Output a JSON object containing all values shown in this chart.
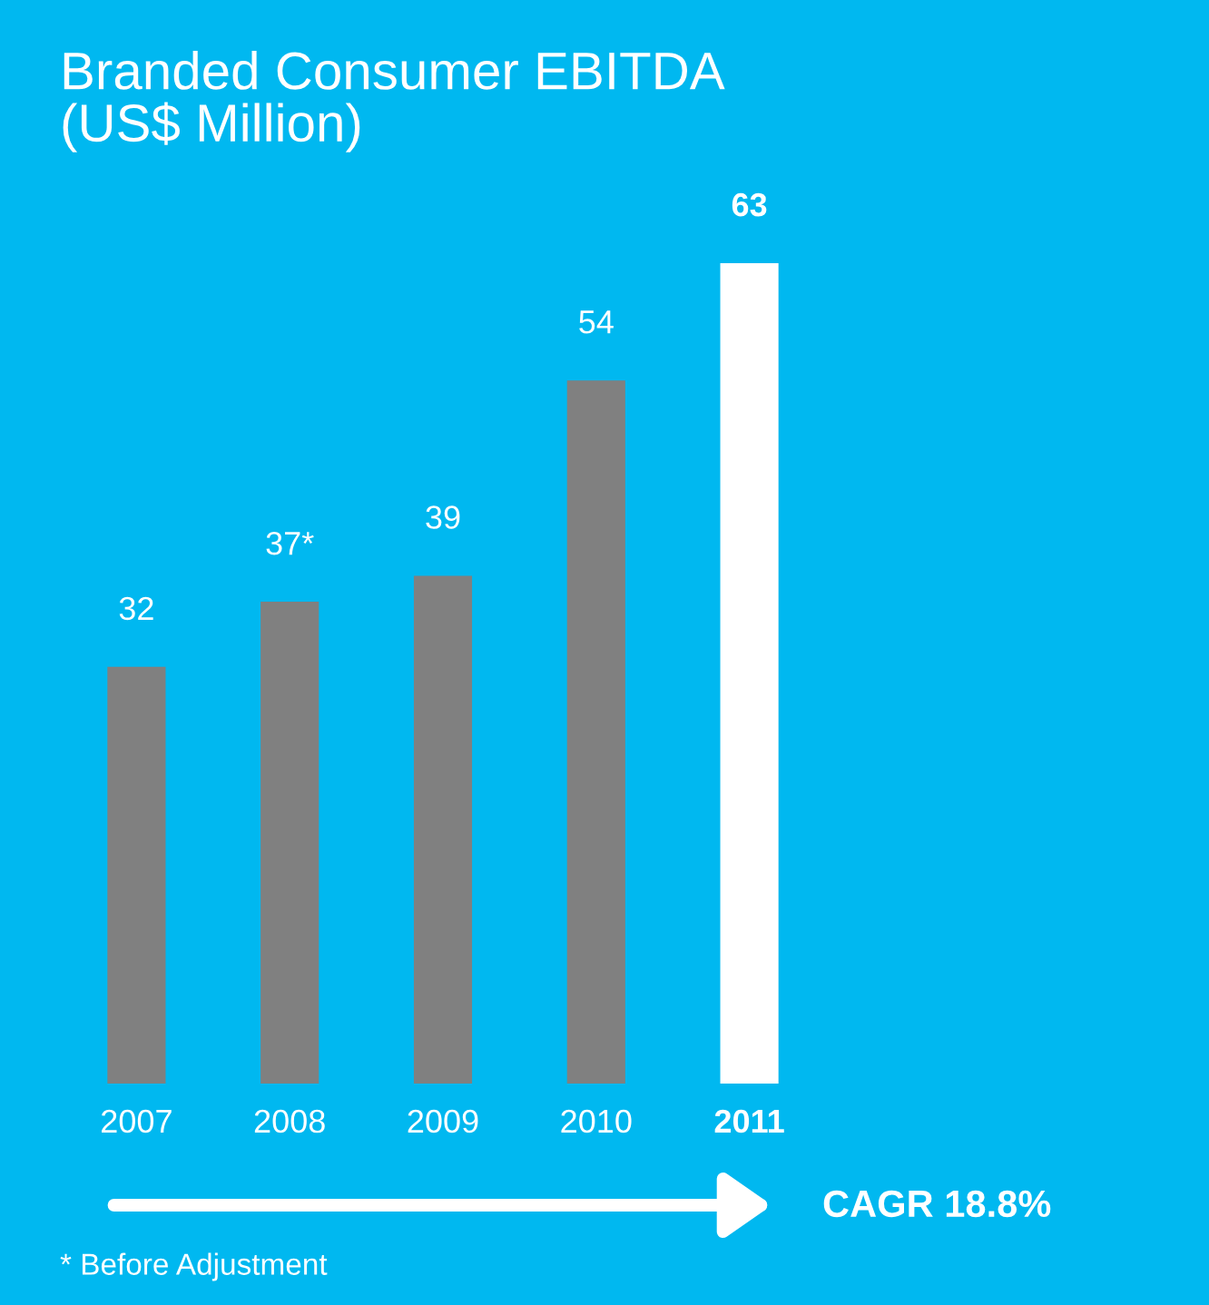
{
  "chart_data": {
    "type": "bar",
    "title": "Branded Consumer EBITDA\n(US$ Million)",
    "categories": [
      "2007",
      "2008",
      "2009",
      "2010",
      "2011"
    ],
    "values": [
      32,
      37,
      39,
      54,
      63
    ],
    "value_labels": [
      "32",
      "37*",
      "39",
      "54",
      "63"
    ],
    "colors": [
      "#808080",
      "#808080",
      "#808080",
      "#808080",
      "#ffffff"
    ],
    "annotations": [
      "CAGR 18.8%",
      "* Before Adjustment"
    ],
    "tick_labels": "x",
    "grid": false
  }
}
